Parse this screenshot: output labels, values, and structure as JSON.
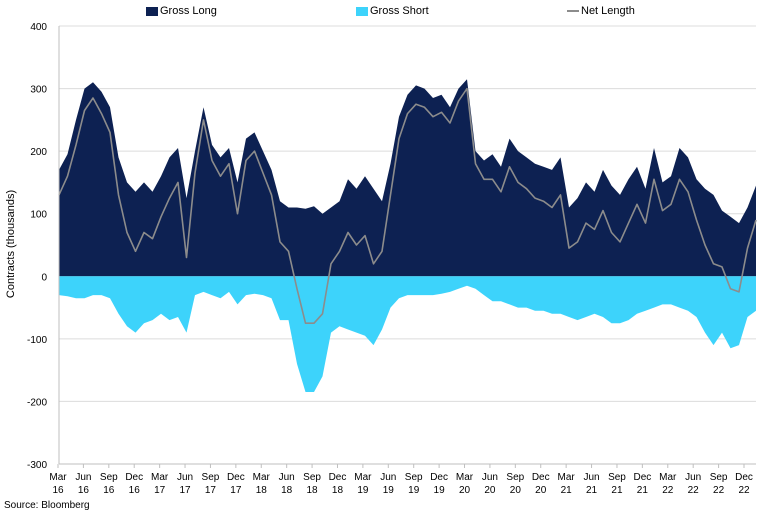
{
  "colors": {
    "gross_long": "#0d2152",
    "gross_short": "#3dd3fb",
    "net_length": "#8c8c8c",
    "grid": "#dcdcdc",
    "axis": "#bfbfbf"
  },
  "source": "Source: Bloomberg",
  "chart_data": {
    "type": "area",
    "ylabel": "Contracts (thousands)",
    "ylim": [
      -300,
      400
    ],
    "yticks": [
      -300,
      -200,
      -100,
      0,
      100,
      200,
      300,
      400
    ],
    "grid": "horizontal",
    "legend_position": "top",
    "x_date_range": [
      "2016-03",
      "2023-01"
    ],
    "x_ticks": [
      {
        "month": "Mar",
        "year": "16"
      },
      {
        "month": "Jun",
        "year": "16"
      },
      {
        "month": "Sep",
        "year": "16"
      },
      {
        "month": "Dec",
        "year": "16"
      },
      {
        "month": "Mar",
        "year": "17"
      },
      {
        "month": "Jun",
        "year": "17"
      },
      {
        "month": "Sep",
        "year": "17"
      },
      {
        "month": "Dec",
        "year": "17"
      },
      {
        "month": "Mar",
        "year": "18"
      },
      {
        "month": "Jun",
        "year": "18"
      },
      {
        "month": "Sep",
        "year": "18"
      },
      {
        "month": "Dec",
        "year": "18"
      },
      {
        "month": "Mar",
        "year": "19"
      },
      {
        "month": "Jun",
        "year": "19"
      },
      {
        "month": "Sep",
        "year": "19"
      },
      {
        "month": "Dec",
        "year": "19"
      },
      {
        "month": "Mar",
        "year": "20"
      },
      {
        "month": "Jun",
        "year": "20"
      },
      {
        "month": "Sep",
        "year": "20"
      },
      {
        "month": "Dec",
        "year": "20"
      },
      {
        "month": "Mar",
        "year": "21"
      },
      {
        "month": "Jun",
        "year": "21"
      },
      {
        "month": "Sep",
        "year": "21"
      },
      {
        "month": "Dec",
        "year": "21"
      },
      {
        "month": "Mar",
        "year": "22"
      },
      {
        "month": "Jun",
        "year": "22"
      },
      {
        "month": "Sep",
        "year": "22"
      },
      {
        "month": "Dec",
        "year": "22"
      }
    ],
    "series": [
      {
        "name": "Gross Long",
        "style": "area",
        "points": [
          [
            "2016-03",
            170
          ],
          [
            "2016-04",
            195
          ],
          [
            "2016-05",
            250
          ],
          [
            "2016-06",
            300
          ],
          [
            "2016-07",
            310
          ],
          [
            "2016-08",
            295
          ],
          [
            "2016-09",
            270
          ],
          [
            "2016-10",
            190
          ],
          [
            "2016-11",
            150
          ],
          [
            "2016-12",
            135
          ],
          [
            "2017-01",
            150
          ],
          [
            "2017-02",
            135
          ],
          [
            "2017-03",
            160
          ],
          [
            "2017-04",
            190
          ],
          [
            "2017-05",
            205
          ],
          [
            "2017-06",
            125
          ],
          [
            "2017-07",
            200
          ],
          [
            "2017-08",
            270
          ],
          [
            "2017-09",
            210
          ],
          [
            "2017-10",
            190
          ],
          [
            "2017-11",
            205
          ],
          [
            "2017-12",
            150
          ],
          [
            "2018-01",
            220
          ],
          [
            "2018-02",
            230
          ],
          [
            "2018-03",
            200
          ],
          [
            "2018-04",
            170
          ],
          [
            "2018-05",
            120
          ],
          [
            "2018-06",
            110
          ],
          [
            "2018-07",
            110
          ],
          [
            "2018-08",
            108
          ],
          [
            "2018-09",
            112
          ],
          [
            "2018-10",
            100
          ],
          [
            "2018-11",
            110
          ],
          [
            "2018-12",
            120
          ],
          [
            "2019-01",
            155
          ],
          [
            "2019-02",
            140
          ],
          [
            "2019-03",
            160
          ],
          [
            "2019-04",
            140
          ],
          [
            "2019-05",
            120
          ],
          [
            "2019-06",
            180
          ],
          [
            "2019-07",
            255
          ],
          [
            "2019-08",
            290
          ],
          [
            "2019-09",
            305
          ],
          [
            "2019-10",
            300
          ],
          [
            "2019-11",
            285
          ],
          [
            "2019-12",
            290
          ],
          [
            "2020-01",
            270
          ],
          [
            "2020-02",
            300
          ],
          [
            "2020-03",
            315
          ],
          [
            "2020-04",
            200
          ],
          [
            "2020-05",
            185
          ],
          [
            "2020-06",
            195
          ],
          [
            "2020-07",
            175
          ],
          [
            "2020-08",
            220
          ],
          [
            "2020-09",
            200
          ],
          [
            "2020-10",
            190
          ],
          [
            "2020-11",
            180
          ],
          [
            "2020-12",
            175
          ],
          [
            "2021-01",
            170
          ],
          [
            "2021-02",
            190
          ],
          [
            "2021-03",
            110
          ],
          [
            "2021-04",
            125
          ],
          [
            "2021-05",
            150
          ],
          [
            "2021-06",
            135
          ],
          [
            "2021-07",
            170
          ],
          [
            "2021-08",
            145
          ],
          [
            "2021-09",
            130
          ],
          [
            "2021-10",
            155
          ],
          [
            "2021-11",
            175
          ],
          [
            "2021-12",
            140
          ],
          [
            "2022-01",
            205
          ],
          [
            "2022-02",
            150
          ],
          [
            "2022-03",
            160
          ],
          [
            "2022-04",
            205
          ],
          [
            "2022-05",
            190
          ],
          [
            "2022-06",
            155
          ],
          [
            "2022-07",
            140
          ],
          [
            "2022-08",
            130
          ],
          [
            "2022-09",
            105
          ],
          [
            "2022-10",
            95
          ],
          [
            "2022-11",
            85
          ],
          [
            "2022-12",
            110
          ],
          [
            "2023-01",
            145
          ]
        ]
      },
      {
        "name": "Gross Short",
        "style": "area",
        "points": [
          [
            "2016-03",
            -30
          ],
          [
            "2016-04",
            -32
          ],
          [
            "2016-05",
            -35
          ],
          [
            "2016-06",
            -35
          ],
          [
            "2016-07",
            -30
          ],
          [
            "2016-08",
            -30
          ],
          [
            "2016-09",
            -35
          ],
          [
            "2016-10",
            -60
          ],
          [
            "2016-11",
            -80
          ],
          [
            "2016-12",
            -90
          ],
          [
            "2017-01",
            -75
          ],
          [
            "2017-02",
            -70
          ],
          [
            "2017-03",
            -60
          ],
          [
            "2017-04",
            -70
          ],
          [
            "2017-05",
            -65
          ],
          [
            "2017-06",
            -90
          ],
          [
            "2017-07",
            -30
          ],
          [
            "2017-08",
            -25
          ],
          [
            "2017-09",
            -30
          ],
          [
            "2017-10",
            -35
          ],
          [
            "2017-11",
            -25
          ],
          [
            "2017-12",
            -45
          ],
          [
            "2018-01",
            -30
          ],
          [
            "2018-02",
            -28
          ],
          [
            "2018-03",
            -30
          ],
          [
            "2018-04",
            -35
          ],
          [
            "2018-05",
            -70
          ],
          [
            "2018-06",
            -70
          ],
          [
            "2018-07",
            -140
          ],
          [
            "2018-08",
            -185
          ],
          [
            "2018-09",
            -185
          ],
          [
            "2018-10",
            -160
          ],
          [
            "2018-11",
            -90
          ],
          [
            "2018-12",
            -80
          ],
          [
            "2019-01",
            -85
          ],
          [
            "2019-02",
            -90
          ],
          [
            "2019-03",
            -95
          ],
          [
            "2019-04",
            -110
          ],
          [
            "2019-05",
            -85
          ],
          [
            "2019-06",
            -50
          ],
          [
            "2019-07",
            -35
          ],
          [
            "2019-08",
            -30
          ],
          [
            "2019-09",
            -30
          ],
          [
            "2019-10",
            -30
          ],
          [
            "2019-11",
            -30
          ],
          [
            "2019-12",
            -28
          ],
          [
            "2020-01",
            -25
          ],
          [
            "2020-02",
            -20
          ],
          [
            "2020-03",
            -15
          ],
          [
            "2020-04",
            -20
          ],
          [
            "2020-05",
            -30
          ],
          [
            "2020-06",
            -40
          ],
          [
            "2020-07",
            -40
          ],
          [
            "2020-08",
            -45
          ],
          [
            "2020-09",
            -50
          ],
          [
            "2020-10",
            -50
          ],
          [
            "2020-11",
            -55
          ],
          [
            "2020-12",
            -55
          ],
          [
            "2021-01",
            -60
          ],
          [
            "2021-02",
            -60
          ],
          [
            "2021-03",
            -65
          ],
          [
            "2021-04",
            -70
          ],
          [
            "2021-05",
            -65
          ],
          [
            "2021-06",
            -60
          ],
          [
            "2021-07",
            -65
          ],
          [
            "2021-08",
            -75
          ],
          [
            "2021-09",
            -75
          ],
          [
            "2021-10",
            -70
          ],
          [
            "2021-11",
            -60
          ],
          [
            "2021-12",
            -55
          ],
          [
            "2022-01",
            -50
          ],
          [
            "2022-02",
            -45
          ],
          [
            "2022-03",
            -45
          ],
          [
            "2022-04",
            -50
          ],
          [
            "2022-05",
            -55
          ],
          [
            "2022-06",
            -65
          ],
          [
            "2022-07",
            -90
          ],
          [
            "2022-08",
            -110
          ],
          [
            "2022-09",
            -90
          ],
          [
            "2022-10",
            -115
          ],
          [
            "2022-11",
            -110
          ],
          [
            "2022-12",
            -65
          ],
          [
            "2023-01",
            -55
          ]
        ]
      },
      {
        "name": "Net Length",
        "style": "line",
        "points": [
          [
            "2016-03",
            130
          ],
          [
            "2016-04",
            160
          ],
          [
            "2016-05",
            210
          ],
          [
            "2016-06",
            265
          ],
          [
            "2016-07",
            285
          ],
          [
            "2016-08",
            260
          ],
          [
            "2016-09",
            230
          ],
          [
            "2016-10",
            130
          ],
          [
            "2016-11",
            70
          ],
          [
            "2016-12",
            40
          ],
          [
            "2017-01",
            70
          ],
          [
            "2017-02",
            60
          ],
          [
            "2017-03",
            95
          ],
          [
            "2017-04",
            125
          ],
          [
            "2017-05",
            150
          ],
          [
            "2017-06",
            30
          ],
          [
            "2017-07",
            165
          ],
          [
            "2017-08",
            250
          ],
          [
            "2017-09",
            185
          ],
          [
            "2017-10",
            160
          ],
          [
            "2017-11",
            180
          ],
          [
            "2017-12",
            100
          ],
          [
            "2018-01",
            185
          ],
          [
            "2018-02",
            200
          ],
          [
            "2018-03",
            165
          ],
          [
            "2018-04",
            130
          ],
          [
            "2018-05",
            55
          ],
          [
            "2018-06",
            40
          ],
          [
            "2018-07",
            -20
          ],
          [
            "2018-08",
            -75
          ],
          [
            "2018-09",
            -75
          ],
          [
            "2018-10",
            -60
          ],
          [
            "2018-11",
            20
          ],
          [
            "2018-12",
            40
          ],
          [
            "2019-01",
            70
          ],
          [
            "2019-02",
            50
          ],
          [
            "2019-03",
            65
          ],
          [
            "2019-04",
            20
          ],
          [
            "2019-05",
            40
          ],
          [
            "2019-06",
            130
          ],
          [
            "2019-07",
            220
          ],
          [
            "2019-08",
            260
          ],
          [
            "2019-09",
            275
          ],
          [
            "2019-10",
            270
          ],
          [
            "2019-11",
            255
          ],
          [
            "2019-12",
            262
          ],
          [
            "2020-01",
            245
          ],
          [
            "2020-02",
            280
          ],
          [
            "2020-03",
            300
          ],
          [
            "2020-04",
            180
          ],
          [
            "2020-05",
            155
          ],
          [
            "2020-06",
            155
          ],
          [
            "2020-07",
            135
          ],
          [
            "2020-08",
            175
          ],
          [
            "2020-09",
            150
          ],
          [
            "2020-10",
            140
          ],
          [
            "2020-11",
            125
          ],
          [
            "2020-12",
            120
          ],
          [
            "2021-01",
            110
          ],
          [
            "2021-02",
            130
          ],
          [
            "2021-03",
            45
          ],
          [
            "2021-04",
            55
          ],
          [
            "2021-05",
            85
          ],
          [
            "2021-06",
            75
          ],
          [
            "2021-07",
            105
          ],
          [
            "2021-08",
            70
          ],
          [
            "2021-09",
            55
          ],
          [
            "2021-10",
            85
          ],
          [
            "2021-11",
            115
          ],
          [
            "2021-12",
            85
          ],
          [
            "2022-01",
            155
          ],
          [
            "2022-02",
            105
          ],
          [
            "2022-03",
            115
          ],
          [
            "2022-04",
            155
          ],
          [
            "2022-05",
            135
          ],
          [
            "2022-06",
            90
          ],
          [
            "2022-07",
            50
          ],
          [
            "2022-08",
            20
          ],
          [
            "2022-09",
            15
          ],
          [
            "2022-10",
            -20
          ],
          [
            "2022-11",
            -25
          ],
          [
            "2022-12",
            45
          ],
          [
            "2023-01",
            90
          ]
        ]
      }
    ]
  }
}
